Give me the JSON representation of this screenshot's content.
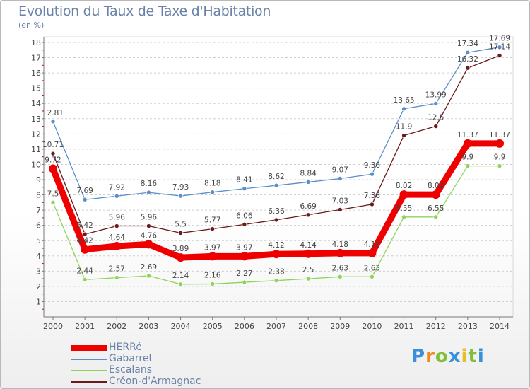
{
  "header": {
    "title": "Evolution du Taux de Taxe d'Habitation",
    "unit": "(en %)"
  },
  "logo": {
    "text": "Proxiti",
    "colors": [
      "#3a8fd9",
      "#f08a1c",
      "#7fbf3a",
      "#3a8fd9",
      "#e6c02a",
      "#7fbf3a",
      "#3a8fd9"
    ]
  },
  "chart_data": {
    "type": "line",
    "x": [
      2000,
      2001,
      2002,
      2003,
      2004,
      2005,
      2006,
      2007,
      2008,
      2009,
      2010,
      2011,
      2012,
      2013,
      2014
    ],
    "ylim": [
      0,
      18
    ],
    "yticks": [
      1,
      2,
      3,
      4,
      5,
      6,
      7,
      8,
      9,
      10,
      11,
      12,
      13,
      14,
      15,
      16,
      17,
      18
    ],
    "grid": "horizontal dashed",
    "legend_position": "bottom-left",
    "series": [
      {
        "name": "Gabarret",
        "color": "#5b8fc9",
        "values": [
          12.81,
          7.69,
          7.92,
          8.16,
          7.93,
          8.18,
          8.41,
          8.62,
          8.84,
          9.07,
          9.36,
          13.65,
          13.99,
          17.34,
          17.69
        ],
        "labels": [
          "12.81",
          "7.69",
          "7.92",
          "8.16",
          "7.93",
          "8.18",
          "8.41",
          "8.62",
          "8.84",
          "9.07",
          "9.36",
          "13.65",
          "13.99",
          "17.34",
          "17.69"
        ]
      },
      {
        "name": "Créon-d'Armagnac",
        "color": "#6b1a1a",
        "values": [
          10.71,
          5.42,
          5.96,
          5.96,
          5.5,
          5.77,
          6.06,
          6.36,
          6.69,
          7.03,
          7.38,
          11.9,
          12.5,
          16.32,
          17.14
        ],
        "labels": [
          "10.71",
          "5.42",
          "5.96",
          "5.96",
          "5.5",
          "5.77",
          "6.06",
          "6.36",
          "6.69",
          "7.03",
          "7.38",
          "11.9",
          "12.5",
          "16.32",
          "17.14"
        ]
      },
      {
        "name": "Escalans",
        "color": "#8fd45a",
        "values": [
          7.5,
          2.44,
          2.57,
          2.69,
          2.14,
          2.16,
          2.27,
          2.38,
          2.5,
          2.63,
          2.63,
          6.55,
          6.55,
          9.9,
          9.9
        ],
        "labels": [
          "7.5",
          "2.44",
          "2.57",
          "2.69",
          "2.14",
          "2.16",
          "2.27",
          "2.38",
          "2.5",
          "2.63",
          "2.63",
          "6.55",
          "6.55",
          "9.9",
          "9.9"
        ]
      },
      {
        "name": "HERRé",
        "color": "#ee0000",
        "values": [
          9.72,
          4.42,
          4.64,
          4.76,
          3.89,
          3.97,
          3.97,
          4.12,
          4.14,
          4.18,
          4.18,
          8.02,
          8.02,
          11.37,
          11.37
        ],
        "labels": [
          "9.72",
          "4.42",
          "4.64",
          "4.76",
          "3.89",
          "3.97",
          "3.97",
          "4.12",
          "4.14",
          "4.18",
          "4.18",
          "8.02",
          "8.02",
          "11.37",
          "11.37"
        ]
      }
    ],
    "legend_order": [
      "HERRé",
      "Gabarret",
      "Escalans",
      "Créon-d'Armagnac"
    ]
  }
}
